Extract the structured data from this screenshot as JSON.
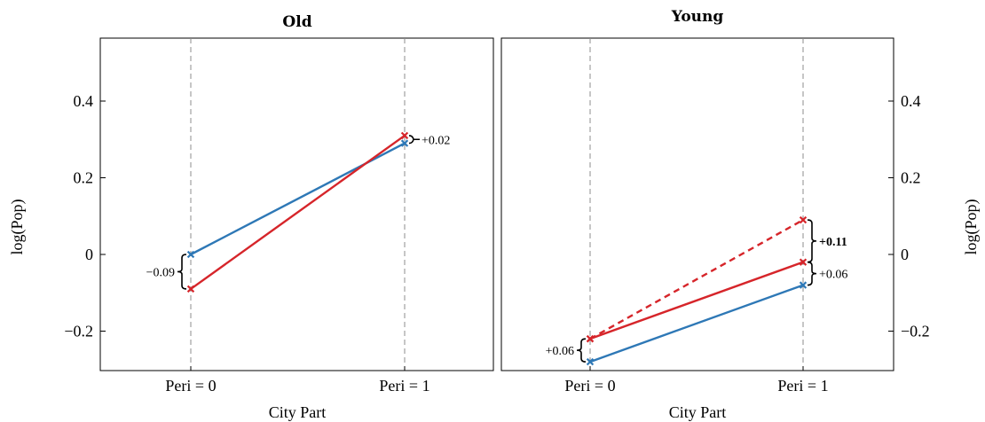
{
  "chart_data": [
    {
      "type": "line",
      "title": "Old",
      "xlabel": "City Part",
      "ylabel": "log(Pop)",
      "categories": [
        "Peri = 0",
        "Peri = 1"
      ],
      "ylim": [
        -0.3,
        0.55
      ],
      "yticks": [
        -0.2,
        0,
        0.2,
        0.4
      ],
      "ytick_labels": [
        "−0.2",
        "0",
        "0.2",
        "0.4"
      ],
      "grid": false,
      "series": [
        {
          "color": "#2e78b6",
          "style": "solid",
          "values": [
            0.0,
            0.29
          ]
        },
        {
          "color": "#d6252a",
          "style": "solid",
          "values": [
            -0.09,
            0.31
          ]
        }
      ],
      "annotations": [
        {
          "text": "−0.09",
          "category": 0,
          "from": -0.09,
          "to": 0.0,
          "side": "left",
          "bold": false
        },
        {
          "text": "+0.02",
          "category": 1,
          "from": 0.29,
          "to": 0.31,
          "side": "right",
          "bold": false
        }
      ]
    },
    {
      "type": "line",
      "title": "Young",
      "xlabel": "City Part",
      "ylabel": "log(Pop)",
      "categories": [
        "Peri = 0",
        "Peri = 1"
      ],
      "ylim": [
        -0.3,
        0.55
      ],
      "yticks": [
        -0.2,
        0,
        0.2,
        0.4
      ],
      "ytick_labels": [
        "−0.2",
        "0",
        "0.2",
        "0.4"
      ],
      "grid": false,
      "series": [
        {
          "color": "#2e78b6",
          "style": "solid",
          "values": [
            -0.28,
            -0.08
          ]
        },
        {
          "color": "#d6252a",
          "style": "solid",
          "values": [
            -0.22,
            -0.02
          ]
        },
        {
          "color": "#d6252a",
          "style": "dashed",
          "values": [
            -0.22,
            0.09
          ]
        }
      ],
      "annotations": [
        {
          "text": "+0.06",
          "category": 0,
          "from": -0.28,
          "to": -0.22,
          "side": "left",
          "bold": false
        },
        {
          "text": "+0.06",
          "category": 1,
          "from": -0.08,
          "to": -0.02,
          "side": "right",
          "bold": false
        },
        {
          "text": "+0.11",
          "category": 1,
          "from": -0.02,
          "to": 0.09,
          "side": "right",
          "bold": true
        }
      ]
    }
  ]
}
